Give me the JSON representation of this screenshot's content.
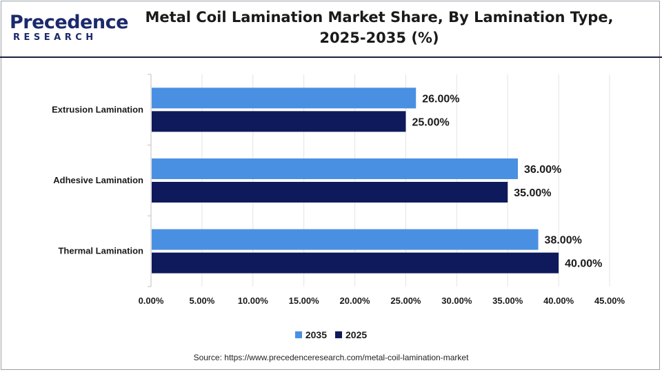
{
  "logo": {
    "top_text": "Precedence",
    "bottom_text": "RESEARCH"
  },
  "title_lines": [
    "Metal Coil Lamination Market Share, By Lamination Type,",
    "2025-2035 (%)"
  ],
  "source": "Source: https://www.precedenceresearch.com/metal-coil-lamination-market",
  "colors": {
    "series_2035": "#4a90e2",
    "series_2025": "#0f1a5c",
    "brand": "#1b2a6b"
  },
  "chart_data": {
    "type": "bar",
    "orientation": "horizontal",
    "title": "Metal Coil Lamination Market Share, By Lamination Type, 2025-2035 (%)",
    "categories": [
      "Extrusion Lamination",
      "Adhesive Lamination",
      "Thermal Lamination"
    ],
    "series": [
      {
        "name": "2035",
        "values": [
          26,
          36,
          38
        ],
        "labels": [
          "26.00%",
          "36.00%",
          "38.00%"
        ],
        "color": "#4a90e2"
      },
      {
        "name": "2025",
        "values": [
          25,
          35,
          40
        ],
        "labels": [
          "25.00%",
          "35.00%",
          "40.00%"
        ],
        "color": "#0f1a5c"
      }
    ],
    "x_ticks": [
      "0.00%",
      "5.00%",
      "10.00%",
      "15.00%",
      "20.00%",
      "25.00%",
      "30.00%",
      "35.00%",
      "40.00%",
      "45.00%"
    ],
    "xlim": [
      0,
      45
    ],
    "grid": "vertical",
    "legend": "bottom-center"
  }
}
